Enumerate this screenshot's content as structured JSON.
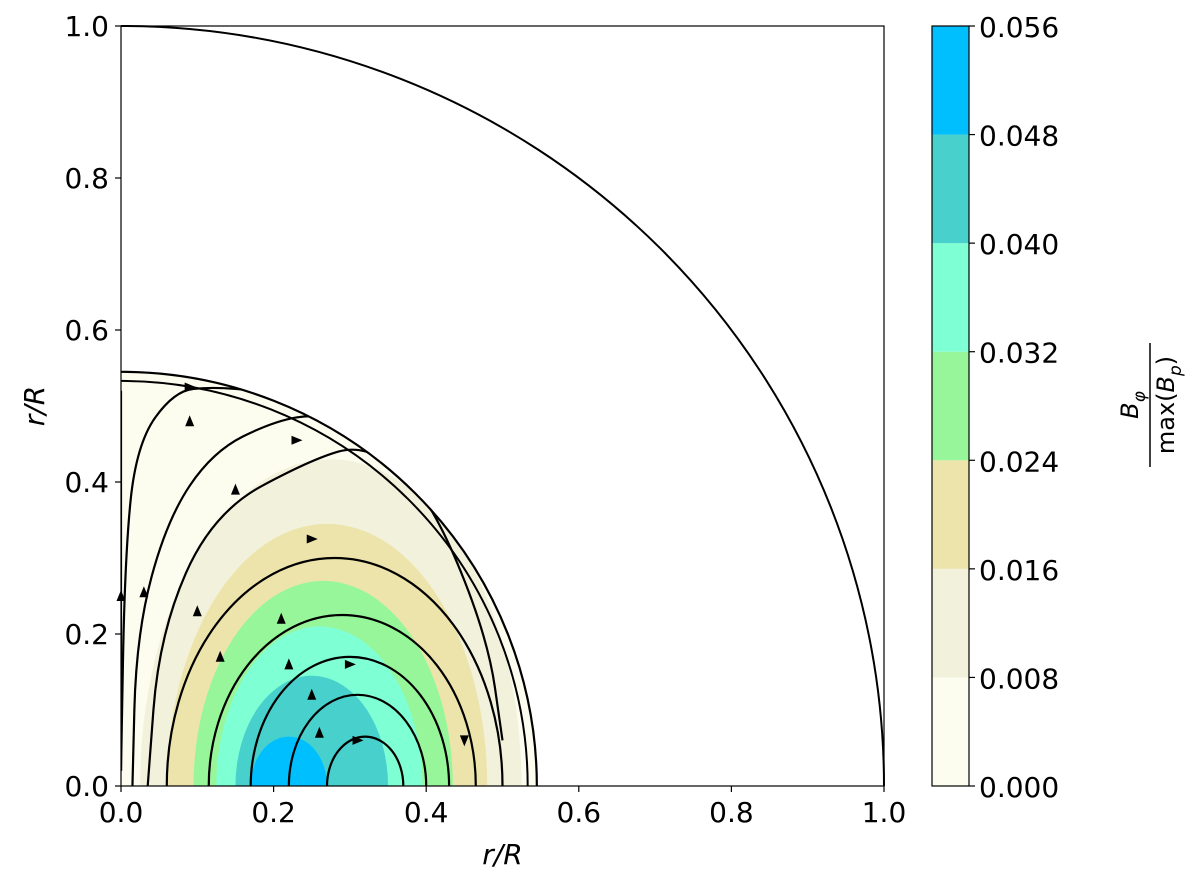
{
  "chart_data": {
    "type": "heatmap",
    "title": "",
    "xlabel": "r/R",
    "ylabel": "r/R",
    "xlim": [
      0.0,
      1.0
    ],
    "ylim": [
      0.0,
      1.0
    ],
    "x_ticks": [
      "0.0",
      "0.2",
      "0.4",
      "0.6",
      "0.8",
      "1.0"
    ],
    "y_ticks": [
      "0.0",
      "0.2",
      "0.4",
      "0.6",
      "0.8",
      "1.0"
    ],
    "outer_boundary_radius": 1.0,
    "inner_boundary_radius": 0.545,
    "grid": false,
    "colorbar": {
      "label": {
        "numerator": "B",
        "numerator_sub": "φ",
        "denominator_prefix": "max(",
        "denominator_var": "B",
        "denominator_sub": "p",
        "denominator_suffix": ")"
      },
      "levels": [
        0.0,
        0.008,
        0.016,
        0.024,
        0.032,
        0.04,
        0.048,
        0.056
      ],
      "tick_labels": [
        "0.000",
        "0.008",
        "0.016",
        "0.024",
        "0.032",
        "0.040",
        "0.048",
        "0.056"
      ],
      "colors": [
        "#fdfdef",
        "#f2f2dc",
        "#ede4ac",
        "#98f69a",
        "#7fffd4",
        "#48d1cc",
        "#00bfff"
      ]
    },
    "filled_contours": [
      {
        "level": 0.0,
        "color": "#fdfdef",
        "center": [
          0.0,
          0.0
        ],
        "rx": 0.545,
        "ry": 0.545
      },
      {
        "level": 0.008,
        "color": "#f2f2dc",
        "center": [
          0.275,
          0.0
        ],
        "rx": 0.25,
        "ry": 0.43
      },
      {
        "level": 0.016,
        "color": "#ede4ac",
        "center": [
          0.27,
          0.0
        ],
        "rx": 0.21,
        "ry": 0.345
      },
      {
        "level": 0.024,
        "color": "#98f69a",
        "center": [
          0.265,
          0.0
        ],
        "rx": 0.17,
        "ry": 0.27
      },
      {
        "level": 0.032,
        "color": "#7fffd4",
        "center": [
          0.26,
          0.0
        ],
        "rx": 0.135,
        "ry": 0.21
      },
      {
        "level": 0.04,
        "color": "#48d1cc",
        "center": [
          0.25,
          0.0
        ],
        "rx": 0.1,
        "ry": 0.145
      },
      {
        "level": 0.048,
        "color": "#00bfff",
        "center": [
          0.22,
          0.0
        ],
        "rx": 0.05,
        "ry": 0.065
      }
    ],
    "field_lines": [
      {
        "shape": "loop",
        "center": [
          0.32,
          0.0
        ],
        "rx": 0.05,
        "ry": 0.065,
        "arrow_t": 0.25
      },
      {
        "shape": "loop",
        "center": [
          0.31,
          0.0
        ],
        "rx": 0.09,
        "ry": 0.12,
        "arrow_t": 0.25
      },
      {
        "shape": "loop",
        "center": [
          0.3,
          0.0
        ],
        "rx": 0.13,
        "ry": 0.17,
        "arrow_t": 0.3
      },
      {
        "shape": "loop",
        "center": [
          0.29,
          0.0
        ],
        "rx": 0.175,
        "ry": 0.225,
        "arrow_t": 0.3
      },
      {
        "shape": "loop",
        "center": [
          0.28,
          0.0
        ],
        "rx": 0.22,
        "ry": 0.3,
        "arrow_t": 0.35
      },
      {
        "shape": "open",
        "points": [
          [
            0.035,
            0.0
          ],
          [
            0.05,
            0.2
          ],
          [
            0.12,
            0.36
          ],
          [
            0.25,
            0.43
          ],
          [
            0.32,
            0.45
          ],
          [
            0.4,
            0.39
          ],
          [
            0.48,
            0.2
          ],
          [
            0.5,
            0.06
          ]
        ],
        "arrow_at": 3
      },
      {
        "shape": "open",
        "points": [
          [
            0.015,
            0.0
          ],
          [
            0.02,
            0.2
          ],
          [
            0.06,
            0.35
          ],
          [
            0.12,
            0.44
          ],
          [
            0.2,
            0.48
          ],
          [
            0.26,
            0.49
          ],
          [
            0.3,
            0.47
          ]
        ],
        "arrow_at": 2
      },
      {
        "shape": "open",
        "points": [
          [
            0.0,
            0.02
          ],
          [
            0.005,
            0.3
          ],
          [
            0.02,
            0.45
          ],
          [
            0.07,
            0.52
          ],
          [
            0.12,
            0.525
          ],
          [
            0.18,
            0.52
          ]
        ],
        "arrow_at": 3
      },
      {
        "shape": "open",
        "points": [
          [
            0.17,
            0.52
          ],
          [
            0.22,
            0.5
          ],
          [
            0.26,
            0.48
          ]
        ],
        "arrow_at": -1
      },
      {
        "shape": "open",
        "points": [
          [
            0.0,
            0.02
          ],
          [
            0.0,
            0.52
          ]
        ],
        "arrow_at": -1
      }
    ],
    "flow_arrows": [
      {
        "x": 0.09,
        "y": 0.525,
        "dir": "right"
      },
      {
        "x": 0.23,
        "y": 0.455,
        "dir": "right"
      },
      {
        "x": 0.25,
        "y": 0.325,
        "dir": "right"
      },
      {
        "x": 0.3,
        "y": 0.16,
        "dir": "right"
      },
      {
        "x": 0.31,
        "y": 0.06,
        "dir": "right"
      },
      {
        "x": 0.09,
        "y": 0.48,
        "dir": "up"
      },
      {
        "x": 0.15,
        "y": 0.39,
        "dir": "up"
      },
      {
        "x": 0.1,
        "y": 0.23,
        "dir": "up"
      },
      {
        "x": 0.13,
        "y": 0.17,
        "dir": "up"
      },
      {
        "x": 0.21,
        "y": 0.22,
        "dir": "up"
      },
      {
        "x": 0.22,
        "y": 0.16,
        "dir": "up"
      },
      {
        "x": 0.25,
        "y": 0.12,
        "dir": "up"
      },
      {
        "x": 0.26,
        "y": 0.07,
        "dir": "up"
      },
      {
        "x": 0.03,
        "y": 0.255,
        "dir": "up"
      },
      {
        "x": 0.0,
        "y": 0.25,
        "dir": "up"
      },
      {
        "x": 0.45,
        "y": 0.06,
        "dir": "down"
      }
    ]
  }
}
